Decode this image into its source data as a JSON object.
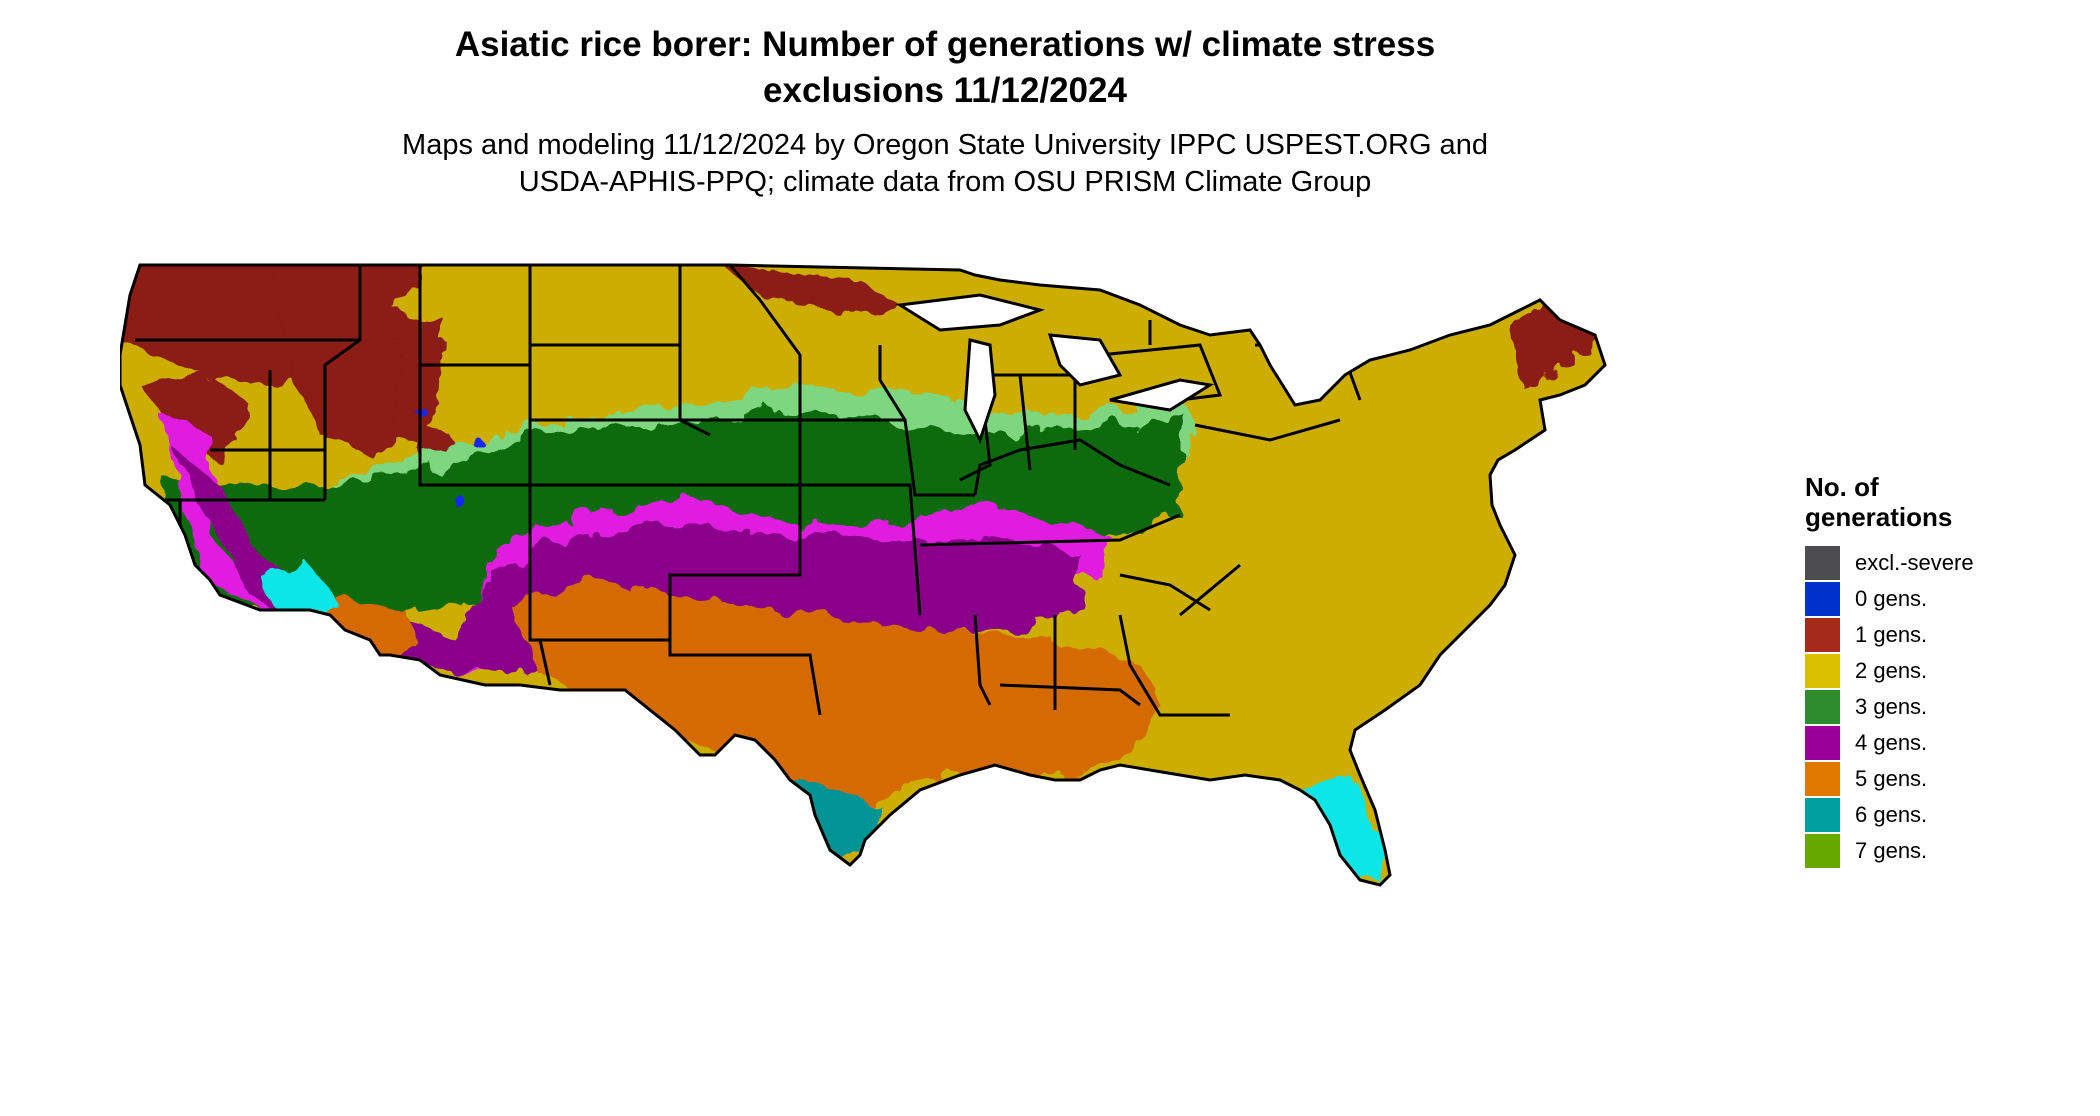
{
  "title_line1": "Asiatic rice borer: Number of generations w/ climate stress",
  "title_line2": "exclusions 11/12/2024",
  "subtitle_line1": "Maps and modeling 11/12/2024 by Oregon State University IPPC USPEST.ORG and",
  "subtitle_line2": "USDA-APHIS-PPQ; climate data from OSU PRISM Climate Group",
  "legend": {
    "title_line1": "No. of",
    "title_line2": "generations",
    "items": [
      {
        "label": "excl.-severe",
        "color": "#4d4d4f"
      },
      {
        "label": "0 gens.",
        "color": "#0033cc"
      },
      {
        "label": "1 gens.",
        "color": "#a52a1a"
      },
      {
        "label": "2 gens.",
        "color": "#d8c000"
      },
      {
        "label": "3 gens.",
        "color": "#2e8b2e"
      },
      {
        "label": "4 gens.",
        "color": "#9b009b"
      },
      {
        "label": "5 gens.",
        "color": "#e07800"
      },
      {
        "label": "6 gens.",
        "color": "#00a0a0"
      },
      {
        "label": "7 gens.",
        "color": "#66aa00"
      }
    ]
  },
  "map_colors": {
    "gen1": "#8b1a14",
    "gen2": "#ccad00",
    "gen2_light": "#e4d200",
    "gen3": "#0b6b0b",
    "gen3_light": "#4aa84a",
    "gen3_pale": "#7ed77e",
    "gen4": "#8b008b",
    "gen4_light": "#e01ee0",
    "gen5": "#d46a00",
    "gen5_light": "#e8923a",
    "gen6": "#009494",
    "gen6_light": "#10e6e6",
    "gen0": "#1428ff",
    "excl": "#505050",
    "border": "#000000"
  }
}
